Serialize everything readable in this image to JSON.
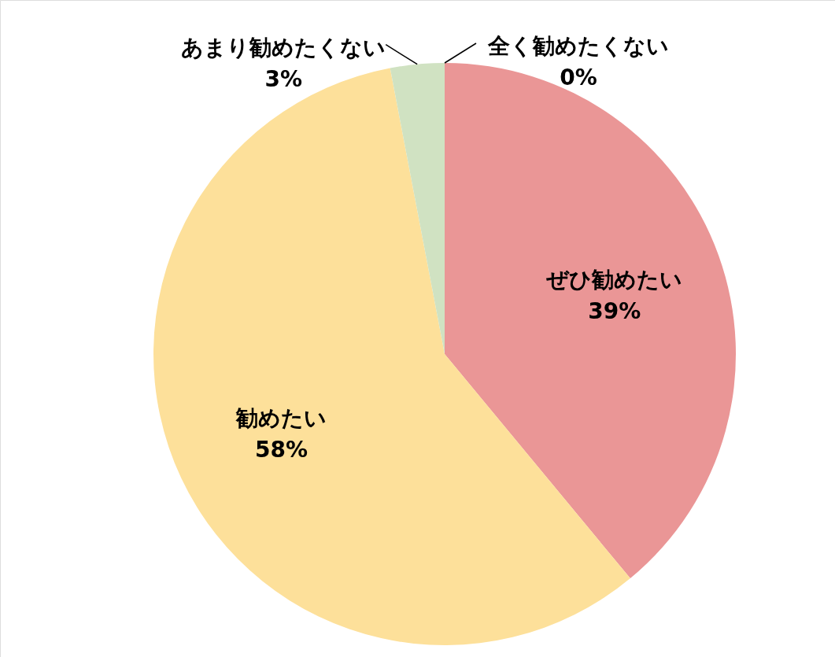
{
  "chart_data": {
    "type": "pie",
    "categories": [
      "ぜひ勧めたい",
      "勧めたい",
      "あまり勧めたくない",
      "全く勧めたくない"
    ],
    "values": [
      39,
      58,
      3,
      0
    ],
    "colors": [
      "#ea9696",
      "#fde09a",
      "#d0e2c2",
      "#a9c4e8"
    ],
    "value_labels": [
      "39%",
      "58%",
      "3%",
      "0%"
    ]
  }
}
